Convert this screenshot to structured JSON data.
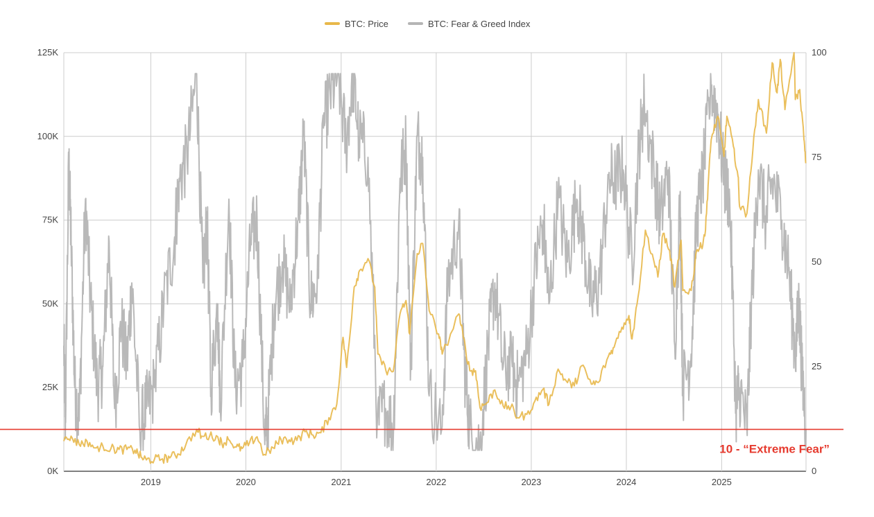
{
  "chart_data": {
    "type": "line",
    "legend": {
      "placement": "top-center",
      "items": [
        {
          "label": "BTC: Price",
          "color": "#e8b84a"
        },
        {
          "label": "BTC: Fear & Greed Index",
          "color": "#b5b5b5"
        }
      ]
    },
    "x_axis": {
      "range": [
        "2018-02-01",
        "2025-11-21"
      ],
      "tick_labels": [
        "2019",
        "2020",
        "2021",
        "2022",
        "2023",
        "2024",
        "2025"
      ],
      "tick_dates": [
        "2019-01-01",
        "2020-01-01",
        "2021-01-01",
        "2022-01-01",
        "2023-01-01",
        "2024-01-01",
        "2025-01-01"
      ]
    },
    "y_left": {
      "range": [
        0,
        125000
      ],
      "tick_values": [
        0,
        25000,
        50000,
        75000,
        100000,
        125000
      ],
      "tick_labels": [
        "0K",
        "25K",
        "50K",
        "75K",
        "100K",
        "125K"
      ]
    },
    "y_right": {
      "range": [
        0,
        100
      ],
      "tick_values": [
        0,
        25,
        50,
        75,
        100
      ],
      "tick_labels": [
        "0",
        "25",
        "50",
        "75",
        "100"
      ]
    },
    "grid": true,
    "series": [
      {
        "name": "BTC: Price",
        "axis": "left",
        "color": "#e8b84a",
        "points": [
          [
            "2018-02-01",
            9000
          ],
          [
            "2018-03-01",
            10500
          ],
          [
            "2018-04-01",
            8000
          ],
          [
            "2018-05-01",
            9000
          ],
          [
            "2018-06-01",
            7000
          ],
          [
            "2018-07-01",
            7500
          ],
          [
            "2018-08-01",
            6800
          ],
          [
            "2018-09-01",
            6500
          ],
          [
            "2018-10-01",
            6500
          ],
          [
            "2018-11-01",
            6300
          ],
          [
            "2018-11-25",
            4200
          ],
          [
            "2018-12-15",
            3400
          ],
          [
            "2019-01-15",
            3600
          ],
          [
            "2019-02-15",
            3700
          ],
          [
            "2019-03-15",
            4000
          ],
          [
            "2019-04-15",
            5200
          ],
          [
            "2019-05-15",
            7800
          ],
          [
            "2019-06-26",
            12500
          ],
          [
            "2019-07-15",
            10500
          ],
          [
            "2019-08-15",
            10500
          ],
          [
            "2019-09-15",
            10300
          ],
          [
            "2019-10-01",
            8200
          ],
          [
            "2019-10-26",
            9500
          ],
          [
            "2019-11-25",
            7200
          ],
          [
            "2019-12-18",
            6800
          ],
          [
            "2020-01-15",
            8500
          ],
          [
            "2020-02-13",
            10300
          ],
          [
            "2020-03-12",
            5000
          ],
          [
            "2020-04-15",
            7000
          ],
          [
            "2020-05-15",
            9500
          ],
          [
            "2020-06-15",
            9400
          ],
          [
            "2020-07-15",
            9200
          ],
          [
            "2020-08-15",
            11800
          ],
          [
            "2020-09-15",
            10800
          ],
          [
            "2020-10-15",
            11500
          ],
          [
            "2020-11-15",
            16000
          ],
          [
            "2020-12-15",
            20000
          ],
          [
            "2021-01-08",
            40000
          ],
          [
            "2021-01-22",
            31000
          ],
          [
            "2021-02-20",
            55000
          ],
          [
            "2021-03-13",
            60000
          ],
          [
            "2021-04-14",
            63500
          ],
          [
            "2021-05-10",
            55000
          ],
          [
            "2021-05-22",
            35000
          ],
          [
            "2021-06-22",
            30000
          ],
          [
            "2021-07-20",
            29800
          ],
          [
            "2021-08-15",
            47000
          ],
          [
            "2021-09-07",
            51000
          ],
          [
            "2021-09-21",
            41000
          ],
          [
            "2021-10-20",
            65000
          ],
          [
            "2021-11-10",
            68000
          ],
          [
            "2021-12-05",
            48000
          ],
          [
            "2022-01-10",
            41000
          ],
          [
            "2022-01-24",
            35000
          ],
          [
            "2022-03-29",
            47000
          ],
          [
            "2022-04-15",
            40000
          ],
          [
            "2022-05-10",
            30000
          ],
          [
            "2022-06-01",
            30000
          ],
          [
            "2022-06-18",
            19000
          ],
          [
            "2022-07-15",
            20500
          ],
          [
            "2022-08-14",
            24300
          ],
          [
            "2022-09-15",
            19500
          ],
          [
            "2022-10-15",
            19200
          ],
          [
            "2022-11-09",
            16000
          ],
          [
            "2022-12-15",
            17000
          ],
          [
            "2023-01-15",
            21000
          ],
          [
            "2023-02-15",
            24500
          ],
          [
            "2023-03-10",
            20000
          ],
          [
            "2023-04-14",
            30500
          ],
          [
            "2023-05-15",
            27000
          ],
          [
            "2023-06-15",
            25500
          ],
          [
            "2023-07-13",
            31500
          ],
          [
            "2023-08-20",
            26000
          ],
          [
            "2023-09-15",
            26500
          ],
          [
            "2023-10-25",
            34500
          ],
          [
            "2023-11-15",
            37000
          ],
          [
            "2023-12-15",
            43000
          ],
          [
            "2024-01-11",
            46500
          ],
          [
            "2024-01-23",
            39500
          ],
          [
            "2024-02-15",
            52000
          ],
          [
            "2024-03-14",
            72000
          ],
          [
            "2024-04-15",
            63000
          ],
          [
            "2024-05-01",
            58000
          ],
          [
            "2024-05-21",
            71000
          ],
          [
            "2024-06-15",
            66000
          ],
          [
            "2024-07-05",
            55000
          ],
          [
            "2024-07-29",
            69000
          ],
          [
            "2024-08-05",
            54000
          ],
          [
            "2024-09-06",
            54000
          ],
          [
            "2024-09-27",
            66000
          ],
          [
            "2024-10-15",
            67000
          ],
          [
            "2024-10-31",
            72000
          ],
          [
            "2024-11-12",
            88000
          ],
          [
            "2024-11-22",
            99000
          ],
          [
            "2024-12-17",
            106000
          ],
          [
            "2025-01-10",
            94000
          ],
          [
            "2025-01-21",
            106000
          ],
          [
            "2025-02-15",
            97000
          ],
          [
            "2025-03-05",
            88000
          ],
          [
            "2025-03-11",
            79000
          ],
          [
            "2025-04-08",
            77000
          ],
          [
            "2025-05-01",
            96000
          ],
          [
            "2025-05-22",
            111000
          ],
          [
            "2025-06-22",
            101000
          ],
          [
            "2025-07-14",
            122000
          ],
          [
            "2025-08-02",
            113000
          ],
          [
            "2025-08-14",
            123000
          ],
          [
            "2025-09-01",
            108000
          ],
          [
            "2025-10-06",
            125000
          ],
          [
            "2025-10-11",
            111000
          ],
          [
            "2025-10-28",
            114000
          ],
          [
            "2025-11-13",
            99000
          ],
          [
            "2025-11-20",
            92000
          ]
        ]
      },
      {
        "name": "BTC: Fear & Greed Index",
        "axis": "right",
        "color": "#b5b5b5",
        "points": [
          [
            "2018-02-01",
            30
          ],
          [
            "2018-02-07",
            12
          ],
          [
            "2018-02-20",
            74
          ],
          [
            "2018-03-01",
            55
          ],
          [
            "2018-03-15",
            20
          ],
          [
            "2018-04-01",
            12
          ],
          [
            "2018-04-25",
            65
          ],
          [
            "2018-05-15",
            40
          ],
          [
            "2018-06-10",
            20
          ],
          [
            "2018-07-01",
            25
          ],
          [
            "2018-07-25",
            55
          ],
          [
            "2018-08-15",
            15
          ],
          [
            "2018-09-10",
            35
          ],
          [
            "2018-10-01",
            25
          ],
          [
            "2018-10-20",
            45
          ],
          [
            "2018-11-20",
            10
          ],
          [
            "2018-12-15",
            15
          ],
          [
            "2019-01-15",
            20
          ],
          [
            "2019-02-20",
            40
          ],
          [
            "2019-04-01",
            55
          ],
          [
            "2019-04-20",
            70
          ],
          [
            "2019-05-20",
            75
          ],
          [
            "2019-06-26",
            95
          ],
          [
            "2019-07-20",
            45
          ],
          [
            "2019-08-05",
            60
          ],
          [
            "2019-08-20",
            20
          ],
          [
            "2019-09-15",
            40
          ],
          [
            "2019-09-25",
            15
          ],
          [
            "2019-10-28",
            65
          ],
          [
            "2019-11-20",
            20
          ],
          [
            "2019-12-20",
            25
          ],
          [
            "2020-01-20",
            55
          ],
          [
            "2020-02-13",
            60
          ],
          [
            "2020-03-13",
            8
          ],
          [
            "2020-03-25",
            12
          ],
          [
            "2020-04-20",
            40
          ],
          [
            "2020-05-20",
            50
          ],
          [
            "2020-06-20",
            40
          ],
          [
            "2020-07-20",
            60
          ],
          [
            "2020-08-10",
            80
          ],
          [
            "2020-09-05",
            40
          ],
          [
            "2020-10-01",
            45
          ],
          [
            "2020-10-25",
            82
          ],
          [
            "2020-11-20",
            90
          ],
          [
            "2020-12-20",
            95
          ],
          [
            "2021-01-20",
            78
          ],
          [
            "2021-02-15",
            95
          ],
          [
            "2021-03-10",
            80
          ],
          [
            "2021-04-14",
            75
          ],
          [
            "2021-05-20",
            12
          ],
          [
            "2021-06-20",
            15
          ],
          [
            "2021-07-21",
            10
          ],
          [
            "2021-08-15",
            70
          ],
          [
            "2021-09-07",
            78
          ],
          [
            "2021-09-25",
            25
          ],
          [
            "2021-10-20",
            80
          ],
          [
            "2021-11-10",
            75
          ],
          [
            "2021-12-05",
            18
          ],
          [
            "2022-01-22",
            10
          ],
          [
            "2022-02-15",
            45
          ],
          [
            "2022-03-29",
            60
          ],
          [
            "2022-04-20",
            25
          ],
          [
            "2022-05-10",
            10
          ],
          [
            "2022-06-18",
            6
          ],
          [
            "2022-07-20",
            30
          ],
          [
            "2022-08-14",
            45
          ],
          [
            "2022-09-15",
            25
          ],
          [
            "2022-10-20",
            25
          ],
          [
            "2022-11-10",
            20
          ],
          [
            "2022-12-15",
            28
          ],
          [
            "2023-01-20",
            50
          ],
          [
            "2023-02-15",
            60
          ],
          [
            "2023-03-10",
            40
          ],
          [
            "2023-04-14",
            65
          ],
          [
            "2023-05-20",
            50
          ],
          [
            "2023-06-25",
            65
          ],
          [
            "2023-07-20",
            55
          ],
          [
            "2023-08-20",
            40
          ],
          [
            "2023-09-20",
            45
          ],
          [
            "2023-10-25",
            70
          ],
          [
            "2023-11-20",
            70
          ],
          [
            "2023-12-20",
            72
          ],
          [
            "2024-01-23",
            50
          ],
          [
            "2024-02-20",
            78
          ],
          [
            "2024-03-10",
            88
          ],
          [
            "2024-04-20",
            70
          ],
          [
            "2024-05-10",
            60
          ],
          [
            "2024-06-10",
            72
          ],
          [
            "2024-07-05",
            30
          ],
          [
            "2024-07-25",
            65
          ],
          [
            "2024-08-05",
            20
          ],
          [
            "2024-09-06",
            28
          ],
          [
            "2024-09-27",
            60
          ],
          [
            "2024-10-20",
            70
          ],
          [
            "2024-11-22",
            92
          ],
          [
            "2024-12-17",
            85
          ],
          [
            "2025-01-10",
            70
          ],
          [
            "2025-02-01",
            65
          ],
          [
            "2025-02-25",
            15
          ],
          [
            "2025-03-10",
            20
          ],
          [
            "2025-04-08",
            10
          ],
          [
            "2025-04-25",
            40
          ],
          [
            "2025-05-22",
            72
          ],
          [
            "2025-06-20",
            60
          ],
          [
            "2025-07-14",
            70
          ],
          [
            "2025-08-20",
            60
          ],
          [
            "2025-09-15",
            48
          ],
          [
            "2025-10-11",
            28
          ],
          [
            "2025-10-25",
            40
          ],
          [
            "2025-11-05",
            25
          ],
          [
            "2025-11-21",
            10
          ]
        ]
      }
    ],
    "reference_line": {
      "axis": "right",
      "value": 10,
      "color": "#e63a2e",
      "label": "10 - “Extreme Fear”"
    }
  }
}
